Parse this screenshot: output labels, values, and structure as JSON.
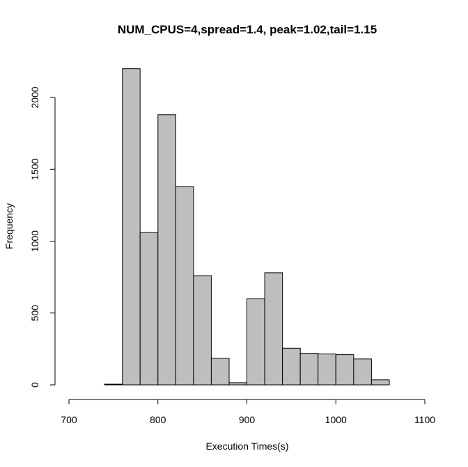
{
  "chart_data": {
    "type": "bar",
    "title": "NUM_CPUS=4,spread=1.4, peak=1.02,tail=1.15",
    "xlabel": "Execution Times(s)",
    "ylabel": "Frequency",
    "xlim": [
      700,
      1100
    ],
    "ylim": [
      0,
      2000
    ],
    "x_ticks": [
      700,
      800,
      900,
      1000,
      1100
    ],
    "y_ticks": [
      0,
      500,
      1000,
      1500,
      2000
    ],
    "grid": false,
    "legend": "none",
    "bar_color": "#bebebe",
    "bins": [
      {
        "x0": 740,
        "x1": 760,
        "value": 5
      },
      {
        "x0": 760,
        "x1": 780,
        "value": 2200
      },
      {
        "x0": 780,
        "x1": 800,
        "value": 1060
      },
      {
        "x0": 800,
        "x1": 820,
        "value": 1880
      },
      {
        "x0": 820,
        "x1": 840,
        "value": 1380
      },
      {
        "x0": 840,
        "x1": 860,
        "value": 760
      },
      {
        "x0": 860,
        "x1": 880,
        "value": 185
      },
      {
        "x0": 880,
        "x1": 900,
        "value": 15
      },
      {
        "x0": 900,
        "x1": 920,
        "value": 600
      },
      {
        "x0": 920,
        "x1": 940,
        "value": 780
      },
      {
        "x0": 940,
        "x1": 960,
        "value": 255
      },
      {
        "x0": 960,
        "x1": 980,
        "value": 220
      },
      {
        "x0": 980,
        "x1": 1000,
        "value": 215
      },
      {
        "x0": 1000,
        "x1": 1020,
        "value": 210
      },
      {
        "x0": 1020,
        "x1": 1040,
        "value": 180
      },
      {
        "x0": 1040,
        "x1": 1060,
        "value": 35
      }
    ]
  }
}
